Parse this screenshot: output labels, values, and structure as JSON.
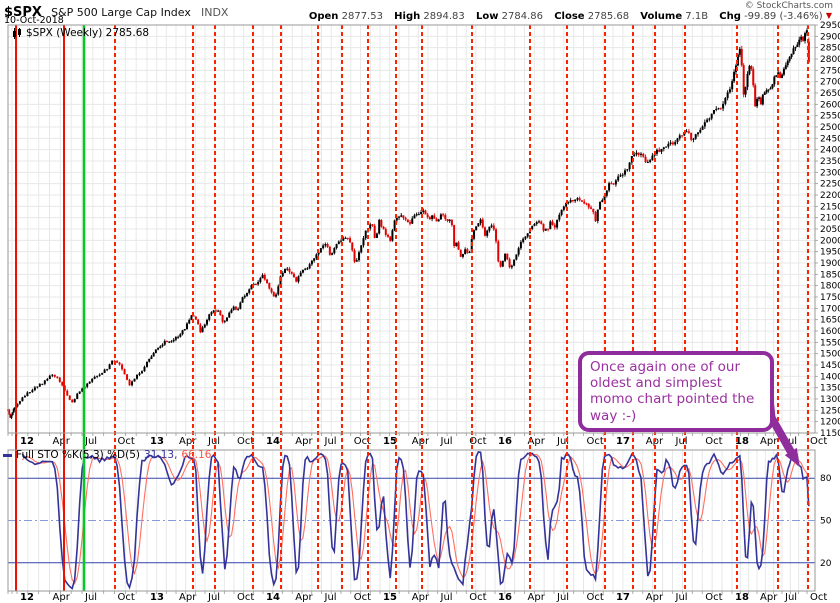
{
  "header": {
    "symbol": "$SPX",
    "name": "S&P 500 Large Cap Index",
    "exchange": "INDX",
    "date": "10-Oct-2018",
    "copyright": "© StockCharts.com",
    "quote": {
      "open_label": "Open",
      "open": "2877.53",
      "high_label": "High",
      "high": "2894.83",
      "low_label": "Low",
      "low": "2784.86",
      "close_label": "Close",
      "close": "2785.68",
      "volume_label": "Volume",
      "volume": "7.1B",
      "chg_label": "Chg",
      "chg": "-99.89 (-3.46%)"
    }
  },
  "price_pane_legend": {
    "text": "$SPX (Weekly) 2785.68"
  },
  "stoch_legend": {
    "label": "Full STO %K(5,3) %D(5)",
    "k_value": "31.13,",
    "d_value": "66.16"
  },
  "annotation": {
    "text": "Once again one of our oldest and simplest momo chart pointed the way :-)"
  },
  "colors": {
    "candle_up": "#000000",
    "candle_down": "#e30000",
    "k_line": "#333399",
    "d_line": "#ff7060",
    "ob_os_line": "#3344aa",
    "mid_line": "#8899dd",
    "signal_dashed": "#ff2200",
    "signal_solid": "#ee1100",
    "signal_green": "#00cc22",
    "annotation": "#8e2d9b",
    "grid": "#e8e8e8",
    "border": "#999999",
    "axis_text": "#000000"
  },
  "chart_data": {
    "type": "candlestick",
    "title": "$SPX (Weekly) 2785.68",
    "timeframe": "Weekly",
    "price_pane": {
      "ylim": [
        1150,
        2950
      ],
      "ytick_step": 50,
      "anchors": [
        [
          2011.85,
          1254
        ],
        [
          2011.89,
          1216
        ],
        [
          2011.93,
          1246
        ],
        [
          2011.96,
          1258
        ],
        [
          2012.0,
          1278
        ],
        [
          2012.06,
          1316
        ],
        [
          2012.12,
          1343
        ],
        [
          2012.2,
          1370
        ],
        [
          2012.26,
          1408
        ],
        [
          2012.31,
          1397
        ],
        [
          2012.35,
          1357
        ],
        [
          2012.42,
          1278
        ],
        [
          2012.47,
          1326
        ],
        [
          2012.52,
          1355
        ],
        [
          2012.58,
          1391
        ],
        [
          2012.64,
          1411
        ],
        [
          2012.7,
          1438
        ],
        [
          2012.73,
          1466
        ],
        [
          2012.78,
          1461
        ],
        [
          2012.82,
          1414
        ],
        [
          2012.87,
          1360
        ],
        [
          2012.92,
          1409
        ],
        [
          2012.96,
          1418
        ],
        [
          2013.0,
          1466
        ],
        [
          2013.08,
          1518
        ],
        [
          2013.15,
          1552
        ],
        [
          2013.22,
          1556
        ],
        [
          2013.28,
          1582
        ],
        [
          2013.33,
          1614
        ],
        [
          2013.38,
          1667
        ],
        [
          2013.43,
          1650
        ],
        [
          2013.46,
          1592
        ],
        [
          2013.5,
          1632
        ],
        [
          2013.54,
          1680
        ],
        [
          2013.57,
          1692
        ],
        [
          2013.62,
          1686
        ],
        [
          2013.66,
          1633
        ],
        [
          2013.7,
          1671
        ],
        [
          2013.74,
          1709
        ],
        [
          2013.78,
          1691
        ],
        [
          2013.82,
          1745
        ],
        [
          2013.86,
          1771
        ],
        [
          2013.9,
          1805
        ],
        [
          2013.95,
          1812
        ],
        [
          2013.98,
          1841
        ],
        [
          2014.0,
          1848
        ],
        [
          2014.05,
          1790
        ],
        [
          2014.1,
          1742
        ],
        [
          2014.15,
          1839
        ],
        [
          2014.2,
          1878
        ],
        [
          2014.24,
          1858
        ],
        [
          2014.28,
          1816
        ],
        [
          2014.33,
          1865
        ],
        [
          2014.38,
          1878
        ],
        [
          2014.44,
          1923
        ],
        [
          2014.5,
          1968
        ],
        [
          2014.54,
          1985
        ],
        [
          2014.58,
          1925
        ],
        [
          2014.63,
          1988
        ],
        [
          2014.68,
          2003
        ],
        [
          2014.72,
          2011
        ],
        [
          2014.76,
          1968
        ],
        [
          2014.79,
          1886
        ],
        [
          2014.83,
          1965
        ],
        [
          2014.87,
          2032
        ],
        [
          2014.91,
          2064
        ],
        [
          2014.93,
          2075
        ],
        [
          2014.96,
          1989
        ],
        [
          2014.99,
          2089
        ],
        [
          2015.02,
          2058
        ],
        [
          2015.06,
          2020
        ],
        [
          2015.09,
          1995
        ],
        [
          2015.13,
          2097
        ],
        [
          2015.17,
          2110
        ],
        [
          2015.21,
          2104
        ],
        [
          2015.25,
          2068
        ],
        [
          2015.29,
          2108
        ],
        [
          2015.33,
          2116
        ],
        [
          2015.38,
          2126
        ],
        [
          2015.42,
          2093
        ],
        [
          2015.46,
          2110
        ],
        [
          2015.5,
          2077
        ],
        [
          2015.54,
          2127
        ],
        [
          2015.58,
          2080
        ],
        [
          2015.62,
          2092
        ],
        [
          2015.645,
          1971
        ],
        [
          2015.67,
          1989
        ],
        [
          2015.7,
          1921
        ],
        [
          2015.74,
          1961
        ],
        [
          2015.77,
          1931
        ],
        [
          2015.81,
          2033
        ],
        [
          2015.85,
          2075
        ],
        [
          2015.88,
          2089
        ],
        [
          2015.91,
          2012
        ],
        [
          2015.95,
          2062
        ],
        [
          2015.98,
          2061
        ],
        [
          2016.0,
          2044
        ],
        [
          2016.02,
          1922
        ],
        [
          2016.05,
          1880
        ],
        [
          2016.08,
          1940
        ],
        [
          2016.11,
          1918
        ],
        [
          2016.13,
          1865
        ],
        [
          2016.16,
          1918
        ],
        [
          2016.19,
          1948
        ],
        [
          2016.22,
          1999
        ],
        [
          2016.26,
          2022
        ],
        [
          2016.3,
          2050
        ],
        [
          2016.34,
          2080
        ],
        [
          2016.38,
          2092
        ],
        [
          2016.41,
          2047
        ],
        [
          2016.45,
          2052
        ],
        [
          2016.48,
          2099
        ],
        [
          2016.5,
          2037
        ],
        [
          2016.53,
          2103
        ],
        [
          2016.56,
          2130
        ],
        [
          2016.6,
          2162
        ],
        [
          2016.64,
          2175
        ],
        [
          2016.7,
          2184
        ],
        [
          2016.75,
          2169
        ],
        [
          2016.79,
          2153
        ],
        [
          2016.83,
          2133
        ],
        [
          2016.85,
          2085
        ],
        [
          2016.88,
          2165
        ],
        [
          2016.91,
          2182
        ],
        [
          2016.94,
          2213
        ],
        [
          2016.97,
          2258
        ],
        [
          2017.0,
          2239
        ],
        [
          2017.04,
          2277
        ],
        [
          2017.08,
          2294
        ],
        [
          2017.12,
          2316
        ],
        [
          2017.16,
          2367
        ],
        [
          2017.2,
          2383
        ],
        [
          2017.24,
          2378
        ],
        [
          2017.28,
          2344
        ],
        [
          2017.32,
          2363
        ],
        [
          2017.36,
          2391
        ],
        [
          2017.4,
          2399
        ],
        [
          2017.44,
          2416
        ],
        [
          2017.48,
          2438
        ],
        [
          2017.52,
          2425
        ],
        [
          2017.56,
          2459
        ],
        [
          2017.6,
          2472
        ],
        [
          2017.63,
          2477
        ],
        [
          2017.66,
          2441
        ],
        [
          2017.7,
          2465
        ],
        [
          2017.74,
          2500
        ],
        [
          2017.78,
          2519
        ],
        [
          2017.82,
          2553
        ],
        [
          2017.86,
          2575
        ],
        [
          2017.9,
          2582
        ],
        [
          2017.93,
          2602
        ],
        [
          2017.96,
          2652
        ],
        [
          2017.99,
          2674
        ],
        [
          2018.02,
          2743
        ],
        [
          2018.05,
          2786
        ],
        [
          2018.07,
          2873
        ],
        [
          2018.1,
          2762
        ],
        [
          2018.12,
          2620
        ],
        [
          2018.15,
          2732
        ],
        [
          2018.18,
          2787
        ],
        [
          2018.2,
          2752
        ],
        [
          2018.23,
          2588
        ],
        [
          2018.26,
          2640
        ],
        [
          2018.29,
          2605
        ],
        [
          2018.32,
          2656
        ],
        [
          2018.35,
          2670
        ],
        [
          2018.38,
          2663
        ],
        [
          2018.42,
          2713
        ],
        [
          2018.46,
          2735
        ],
        [
          2018.49,
          2718
        ],
        [
          2018.52,
          2760
        ],
        [
          2018.56,
          2801
        ],
        [
          2018.6,
          2833
        ],
        [
          2018.63,
          2850
        ],
        [
          2018.66,
          2875
        ],
        [
          2018.69,
          2902
        ],
        [
          2018.71,
          2872
        ],
        [
          2018.725,
          2905
        ],
        [
          2018.74,
          2930
        ],
        [
          2018.755,
          2914
        ],
        [
          2018.765,
          2886
        ],
        [
          2018.78,
          2786
        ]
      ],
      "last_candle": {
        "open": 2877.53,
        "high": 2894.83,
        "low": 2784.86,
        "close": 2785.68
      }
    },
    "stoch_pane": {
      "name": "Full STO %K(5,3) %D(5)",
      "ylim": [
        0,
        100
      ],
      "ref_lines": [
        80,
        50,
        20
      ],
      "k_period": 5,
      "k_smooth": 3,
      "d_period": 5,
      "k_last": 31.13,
      "d_last": 66.16
    },
    "time_axis": {
      "start_t": 2011.85,
      "end_t": 2018.78,
      "year_anchors": [
        [
          2011.85,
          8
        ],
        [
          2012,
          17
        ],
        [
          2013,
          147
        ],
        [
          2014,
          263
        ],
        [
          2015,
          380
        ],
        [
          2016,
          495
        ],
        [
          2017,
          613
        ],
        [
          2018,
          732
        ],
        [
          2018.8,
          812
        ]
      ],
      "month_labels": [
        "Apr",
        "Jul",
        "Oct"
      ],
      "year_labels": [
        "12",
        "13",
        "14",
        "15",
        "16",
        "17",
        "18"
      ]
    },
    "signals": {
      "solid_red_x": [
        16,
        64
      ],
      "green_x": [
        84
      ],
      "dashed_red_x": [
        115,
        193,
        215,
        253,
        281,
        318,
        342,
        368,
        396,
        422,
        472,
        530,
        567,
        605,
        633,
        655,
        685,
        737,
        778,
        808
      ]
    },
    "legend_position": "top-left",
    "grid": true
  }
}
